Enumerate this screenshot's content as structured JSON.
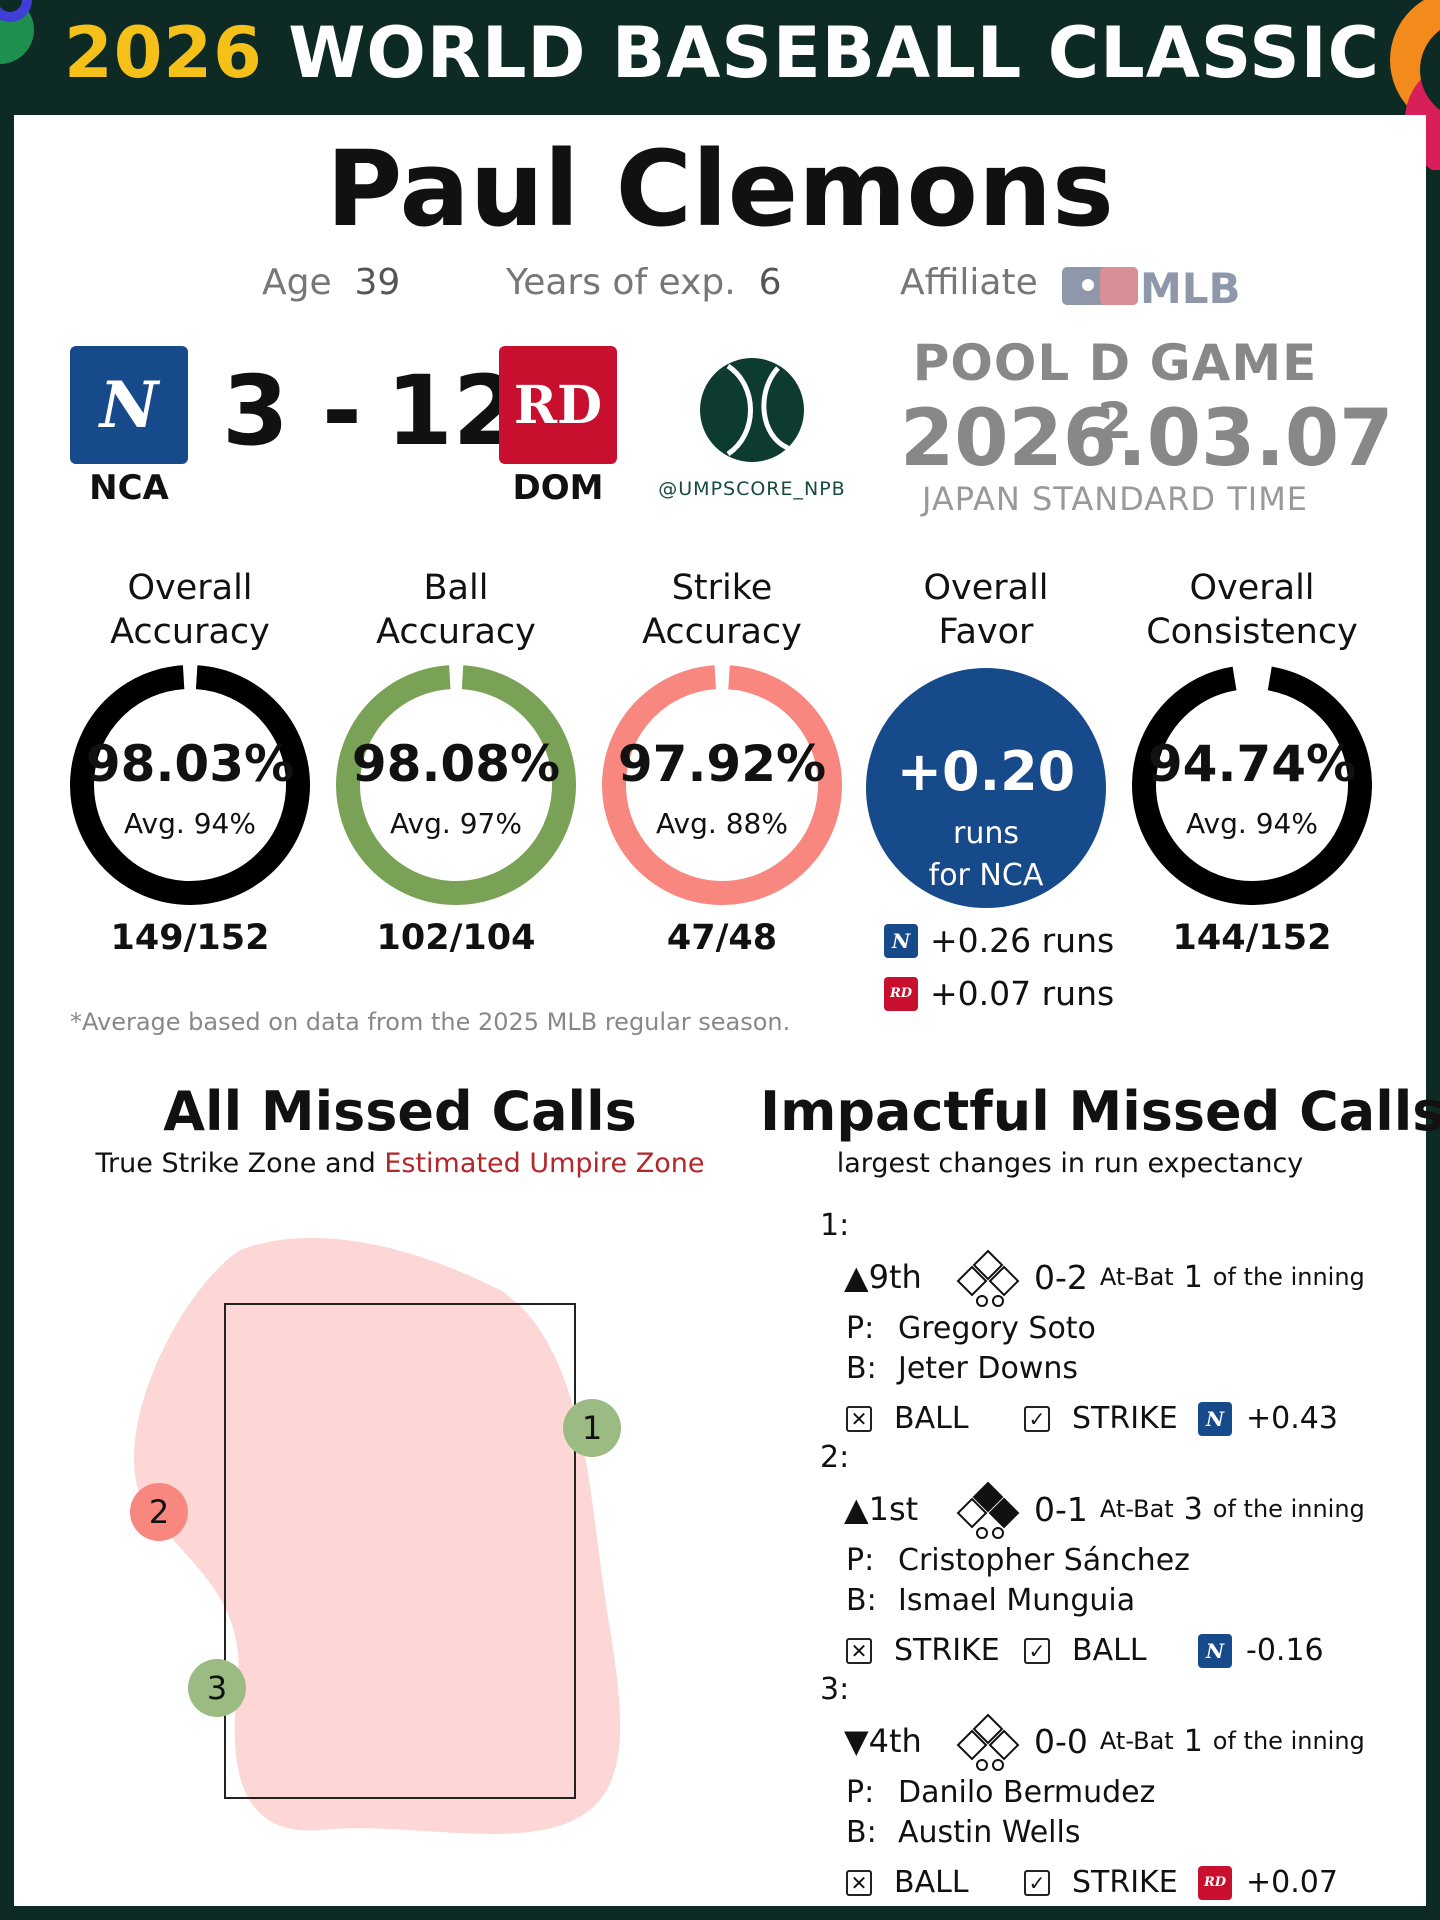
{
  "header": {
    "year": "2026",
    "title": "WORLD BASEBALL CLASSIC"
  },
  "umpire": {
    "name": "Paul Clemons"
  },
  "meta": {
    "age_label": "Age",
    "age": "39",
    "exp_label": "Years of exp.",
    "exp": "6",
    "affiliate_label": "Affiliate",
    "affiliate_logo_text": "MLB"
  },
  "game": {
    "away": {
      "code": "NCA",
      "score": "3",
      "logo_letter": "N",
      "color": "#174a8b"
    },
    "separator": "-",
    "home": {
      "code": "DOM",
      "score": "12",
      "logo_letter": "RD",
      "color": "#c8102e"
    },
    "pool": "POOL D GAME 2",
    "date": "2026.03.07",
    "timezone": "JAPAN STANDARD TIME",
    "handle": "@UMPSCORE_NPB"
  },
  "stats": [
    {
      "title1": "Overall",
      "title2": "Accuracy",
      "value": "98.03%",
      "avg": "Avg. 94%",
      "fraction": "149/152",
      "pct": 98.03,
      "color": "#000000"
    },
    {
      "title1": "Ball",
      "title2": "Accuracy",
      "value": "98.08%",
      "avg": "Avg. 97%",
      "fraction": "102/104",
      "pct": 98.08,
      "color": "#7aa257"
    },
    {
      "title1": "Strike",
      "title2": "Accuracy",
      "value": "97.92%",
      "avg": "Avg. 88%",
      "fraction": "47/48",
      "pct": 97.92,
      "color": "#f7877f"
    },
    {
      "title1": "Overall",
      "title2": "Consistency",
      "value": "94.74%",
      "avg": "Avg. 94%",
      "fraction": "144/152",
      "pct": 94.74,
      "color": "#000000"
    }
  ],
  "favor": {
    "title1": "Overall",
    "title2": "Favor",
    "value": "+0.20",
    "unit": "runs",
    "team": "for NCA",
    "nca_runs": "+0.26 runs",
    "dom_runs": "+0.07 runs"
  },
  "footnote": "*Average based on data from the 2025 MLB regular season.",
  "missed": {
    "title": "All Missed Calls",
    "subtitle_a": "True Strike Zone and ",
    "subtitle_b": "Estimated Umpire Zone",
    "markers": [
      "1",
      "2",
      "3"
    ]
  },
  "impactful": {
    "title": "Impactful Missed Calls",
    "subtitle": "largest changes in run expectancy",
    "atbat_label": "At-Bat",
    "inning_suffix": "of the inning",
    "calls": [
      {
        "num": "1:",
        "inning": "▲9th",
        "count": "0-2",
        "atbat": "1",
        "pitcher": "Gregory Soto",
        "batter": "Jeter Downs",
        "call": "BALL",
        "correct": "STRIKE",
        "team": "NCA",
        "delta": "+0.43"
      },
      {
        "num": "2:",
        "inning": "▲1st",
        "count": "0-1",
        "atbat": "3",
        "pitcher": "Cristopher Sánchez",
        "batter": "Ismael Munguia",
        "call": "STRIKE",
        "correct": "BALL",
        "team": "NCA",
        "delta": "-0.16"
      },
      {
        "num": "3:",
        "inning": "▼4th",
        "count": "0-0",
        "atbat": "1",
        "pitcher": "Danilo Bermudez",
        "batter": "Austin Wells",
        "call": "BALL",
        "correct": "STRIKE",
        "team": "DOM",
        "delta": "+0.07"
      }
    ],
    "p_label": "P:",
    "b_label": "B:"
  }
}
